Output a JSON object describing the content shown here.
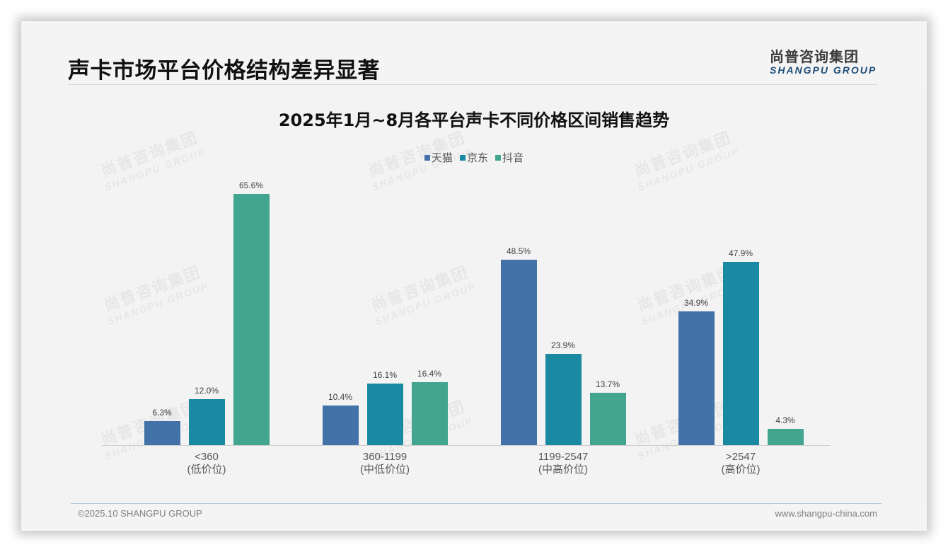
{
  "slide": {
    "title": "声卡市场平台价格结构差异显著",
    "logo": {
      "cn": "尚普咨询集团",
      "en": "SHANGPU GROUP"
    },
    "watermark": {
      "cn": "尚普咨询集团",
      "en": "SHANGPU GROUP"
    },
    "footer": {
      "left": "©2025.10 SHANGPU GROUP",
      "right": "www.shangpu-china.com"
    }
  },
  "colors": {
    "tmall": "#4372a8",
    "jd": "#1a89a2",
    "douyin": "#41a590",
    "title_text": "#111111",
    "logo_en": "#1f4e79"
  },
  "chart_data": {
    "type": "bar",
    "title": "2025年1月~8月各平台声卡不同价格区间销售趋势",
    "xlabel": "",
    "ylabel": "",
    "ylim": [
      0,
      70
    ],
    "grid": false,
    "legend_position": "top",
    "categories": [
      "<360\n(低价位)",
      "360-1199\n(中低价位)",
      "1199-2547\n(中高价位)",
      ">2547\n(高价位)"
    ],
    "category_labels": [
      {
        "range": "<360",
        "tier": "(低价位)"
      },
      {
        "range": "360-1199",
        "tier": "(中低价位)"
      },
      {
        "range": "1199-2547",
        "tier": "(中高价位)"
      },
      {
        "range": ">2547",
        "tier": "(高价位)"
      }
    ],
    "series": [
      {
        "name": "天猫",
        "color": "#4372a8",
        "values": [
          6.3,
          10.4,
          48.5,
          34.9
        ],
        "labels": [
          "6.3%",
          "10.4%",
          "48.5%",
          "34.9%"
        ]
      },
      {
        "name": "京东",
        "color": "#1a89a2",
        "values": [
          12.0,
          16.1,
          23.9,
          47.9
        ],
        "labels": [
          "12.0%",
          "16.1%",
          "23.9%",
          "47.9%"
        ]
      },
      {
        "name": "抖音",
        "color": "#41a590",
        "values": [
          65.6,
          16.4,
          13.7,
          4.3
        ],
        "labels": [
          "65.6%",
          "16.4%",
          "13.7%",
          "4.3%"
        ]
      }
    ],
    "unit": "%"
  }
}
